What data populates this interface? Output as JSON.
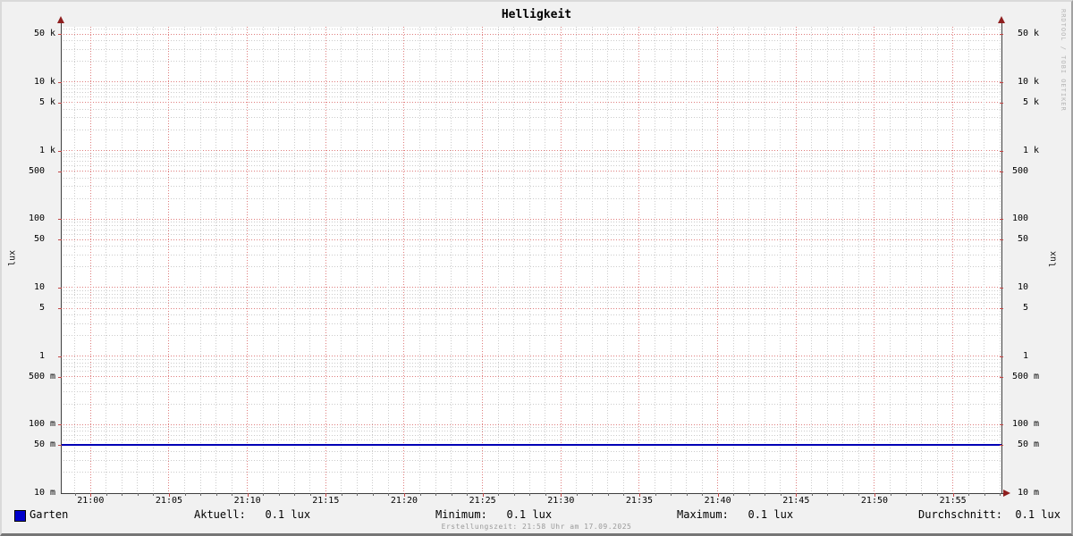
{
  "title": "Helligkeit",
  "watermark": "RRDTOOL / TOBI OETIKER",
  "footer": "Erstellungszeit: 21:58 Uhr am 17.09.2025",
  "y_axis": {
    "unit_label": "lux"
  },
  "legend": {
    "series_label": "Garten",
    "swatch_color": "#0000cc",
    "stats": [
      {
        "text": "Aktuell:   0.1 lux"
      },
      {
        "text": "Minimum:   0.1 lux"
      },
      {
        "text": "Maximum:   0.1 lux"
      },
      {
        "text": "Durchschnitt:  0.1 lux"
      }
    ]
  },
  "chart_data": {
    "type": "line",
    "title": "Helligkeit",
    "xlabel": "",
    "ylabel": "lux",
    "y_scale": "log",
    "ylim": [
      0.01,
      64000
    ],
    "grid": true,
    "legend_position": "bottom",
    "y_ticks": [
      {
        "v": 0.01,
        "num": "10",
        "unit": "m"
      },
      {
        "v": 0.05,
        "num": "50",
        "unit": "m"
      },
      {
        "v": 0.1,
        "num": "100",
        "unit": "m"
      },
      {
        "v": 0.5,
        "num": "500",
        "unit": "m"
      },
      {
        "v": 1,
        "num": "1",
        "unit": ""
      },
      {
        "v": 5,
        "num": "5",
        "unit": ""
      },
      {
        "v": 10,
        "num": "10",
        "unit": ""
      },
      {
        "v": 50,
        "num": "50",
        "unit": ""
      },
      {
        "v": 100,
        "num": "100",
        "unit": ""
      },
      {
        "v": 500,
        "num": "500",
        "unit": ""
      },
      {
        "v": 1000,
        "num": "1",
        "unit": "k"
      },
      {
        "v": 5000,
        "num": "5",
        "unit": "k"
      },
      {
        "v": 10000,
        "num": "10",
        "unit": "k"
      },
      {
        "v": 50000,
        "num": "50",
        "unit": "k"
      }
    ],
    "x_ticks": [
      {
        "minute": 0,
        "label": "21:00"
      },
      {
        "minute": 5,
        "label": "21:05"
      },
      {
        "minute": 10,
        "label": "21:10"
      },
      {
        "minute": 15,
        "label": "21:15"
      },
      {
        "minute": 20,
        "label": "21:20"
      },
      {
        "minute": 25,
        "label": "21:25"
      },
      {
        "minute": 30,
        "label": "21:30"
      },
      {
        "minute": 35,
        "label": "21:35"
      },
      {
        "minute": 40,
        "label": "21:40"
      },
      {
        "minute": 45,
        "label": "21:45"
      },
      {
        "minute": 50,
        "label": "21:50"
      },
      {
        "minute": 55,
        "label": "21:55"
      }
    ],
    "x_window_minutes": [
      -1.9,
      58.1
    ],
    "x_minor_step_min": 1,
    "x_major_step_min": 5,
    "series": [
      {
        "name": "Garten",
        "color": "#0000b6",
        "constant_value_lux": 0.05,
        "x": [
          "20:58",
          "21:58"
        ],
        "values": [
          0.05,
          0.05
        ]
      }
    ],
    "stats": {
      "aktuell": "0.1 lux",
      "minimum": "0.1 lux",
      "maximum": "0.1 lux",
      "durchschnitt": "0.1 lux"
    },
    "colors": {
      "major_grid": "#df7d7d",
      "minor_grid": "#cbcbcb",
      "axis": "#3f3f3f",
      "arrow": "#8f1f1f",
      "canvas": "#ffffff",
      "background": "#f1f1f1"
    }
  }
}
